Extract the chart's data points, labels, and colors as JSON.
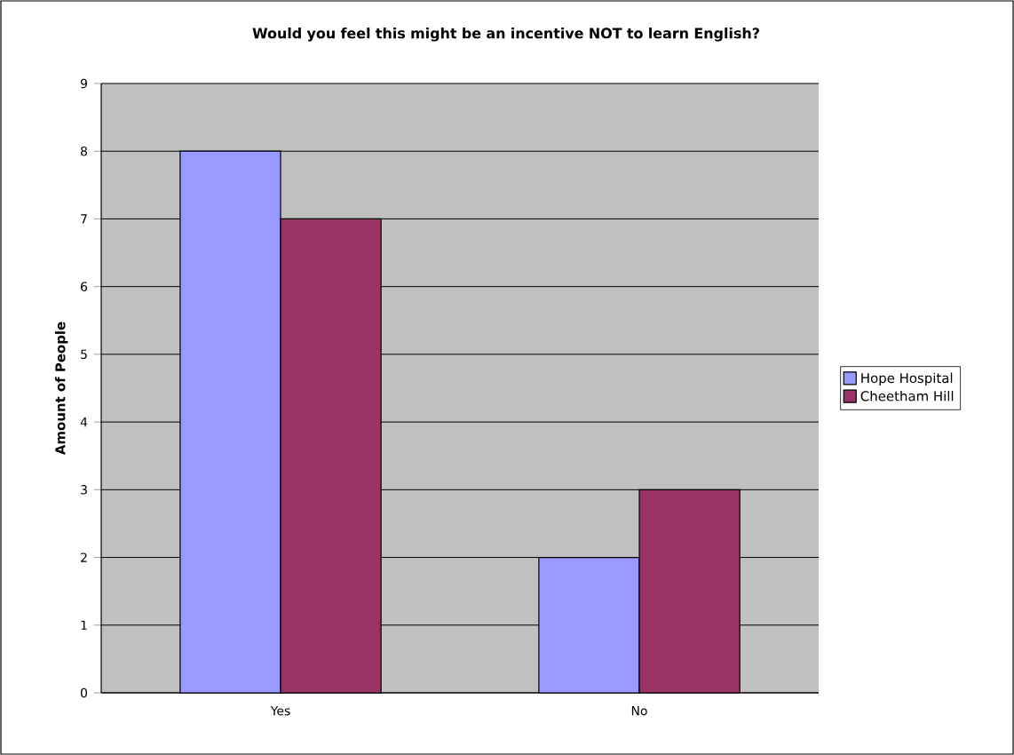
{
  "chart_data": {
    "type": "bar",
    "title": "Would you feel this might be an incentive NOT to learn English?",
    "ylabel": "Amount of People",
    "categories": [
      "Yes",
      "No"
    ],
    "series": [
      {
        "name": "Hope Hospital",
        "color": "#9999ff",
        "values": [
          8,
          2
        ]
      },
      {
        "name": "Cheetham Hill",
        "color": "#993366",
        "values": [
          7,
          3
        ]
      }
    ],
    "ylim": [
      0,
      9
    ],
    "yticks": [
      0,
      1,
      2,
      3,
      4,
      5,
      6,
      7,
      8,
      9
    ],
    "grid": "y",
    "legend": "right"
  }
}
